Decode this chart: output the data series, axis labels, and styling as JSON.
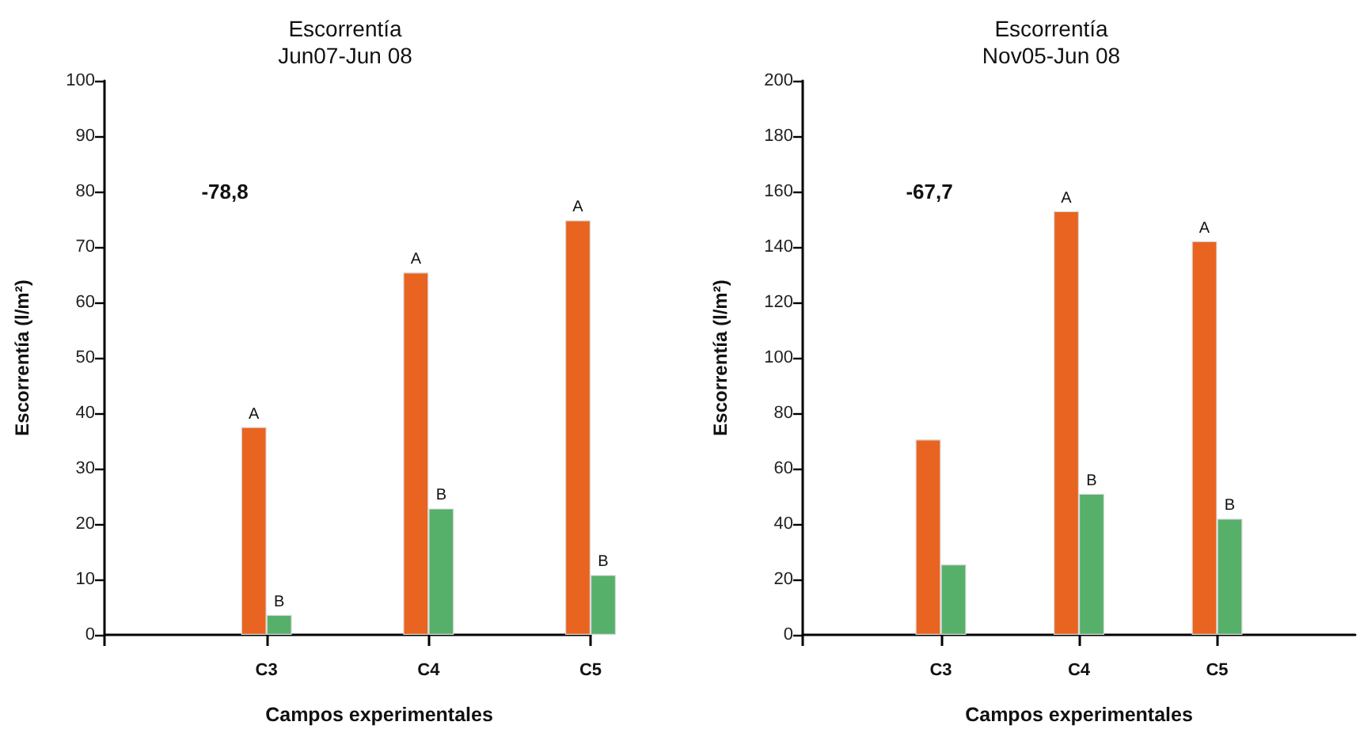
{
  "chart_data": [
    {
      "type": "bar",
      "title": "Escorrentía",
      "subtitle": "Jun07-Jun 08",
      "xlabel": "Campos experimentales",
      "ylabel": "Escorrentía (l/m²)",
      "categories": [
        null,
        "C3",
        "C4",
        "C5"
      ],
      "series": [
        {
          "color": "#e86420",
          "values": [
            null,
            37.5,
            65.4,
            74.8
          ],
          "value_labels": [
            null,
            "A",
            "A",
            "A"
          ]
        },
        {
          "color": "#56b06a",
          "values": [
            null,
            3.6,
            22.8,
            10.8
          ],
          "value_labels": [
            null,
            "B",
            "B",
            "B"
          ]
        }
      ],
      "ylim": [
        0,
        100
      ],
      "yticks": [
        0,
        10,
        20,
        30,
        40,
        50,
        60,
        70,
        80,
        90,
        100
      ],
      "annotations": [
        "-78,8"
      ]
    },
    {
      "type": "bar",
      "title": "Escorrentía",
      "subtitle": "Nov05-Jun 08",
      "xlabel": "Campos experimentales",
      "ylabel": "Escorrentía (l/m²)",
      "categories": [
        null,
        "C3",
        "C4",
        "C5"
      ],
      "series": [
        {
          "color": "#e86420",
          "values": [
            null,
            70.5,
            152.9,
            142.1
          ],
          "value_labels": [
            null,
            null,
            "A",
            "A"
          ]
        },
        {
          "color": "#56b06a",
          "values": [
            null,
            25.4,
            50.9,
            41.9
          ],
          "value_labels": [
            null,
            null,
            "B",
            "B"
          ]
        }
      ],
      "ylim": [
        0,
        200
      ],
      "yticks": [
        0,
        20,
        40,
        60,
        80,
        100,
        120,
        140,
        160,
        180,
        200
      ],
      "annotations": [
        "-67,7"
      ]
    }
  ]
}
